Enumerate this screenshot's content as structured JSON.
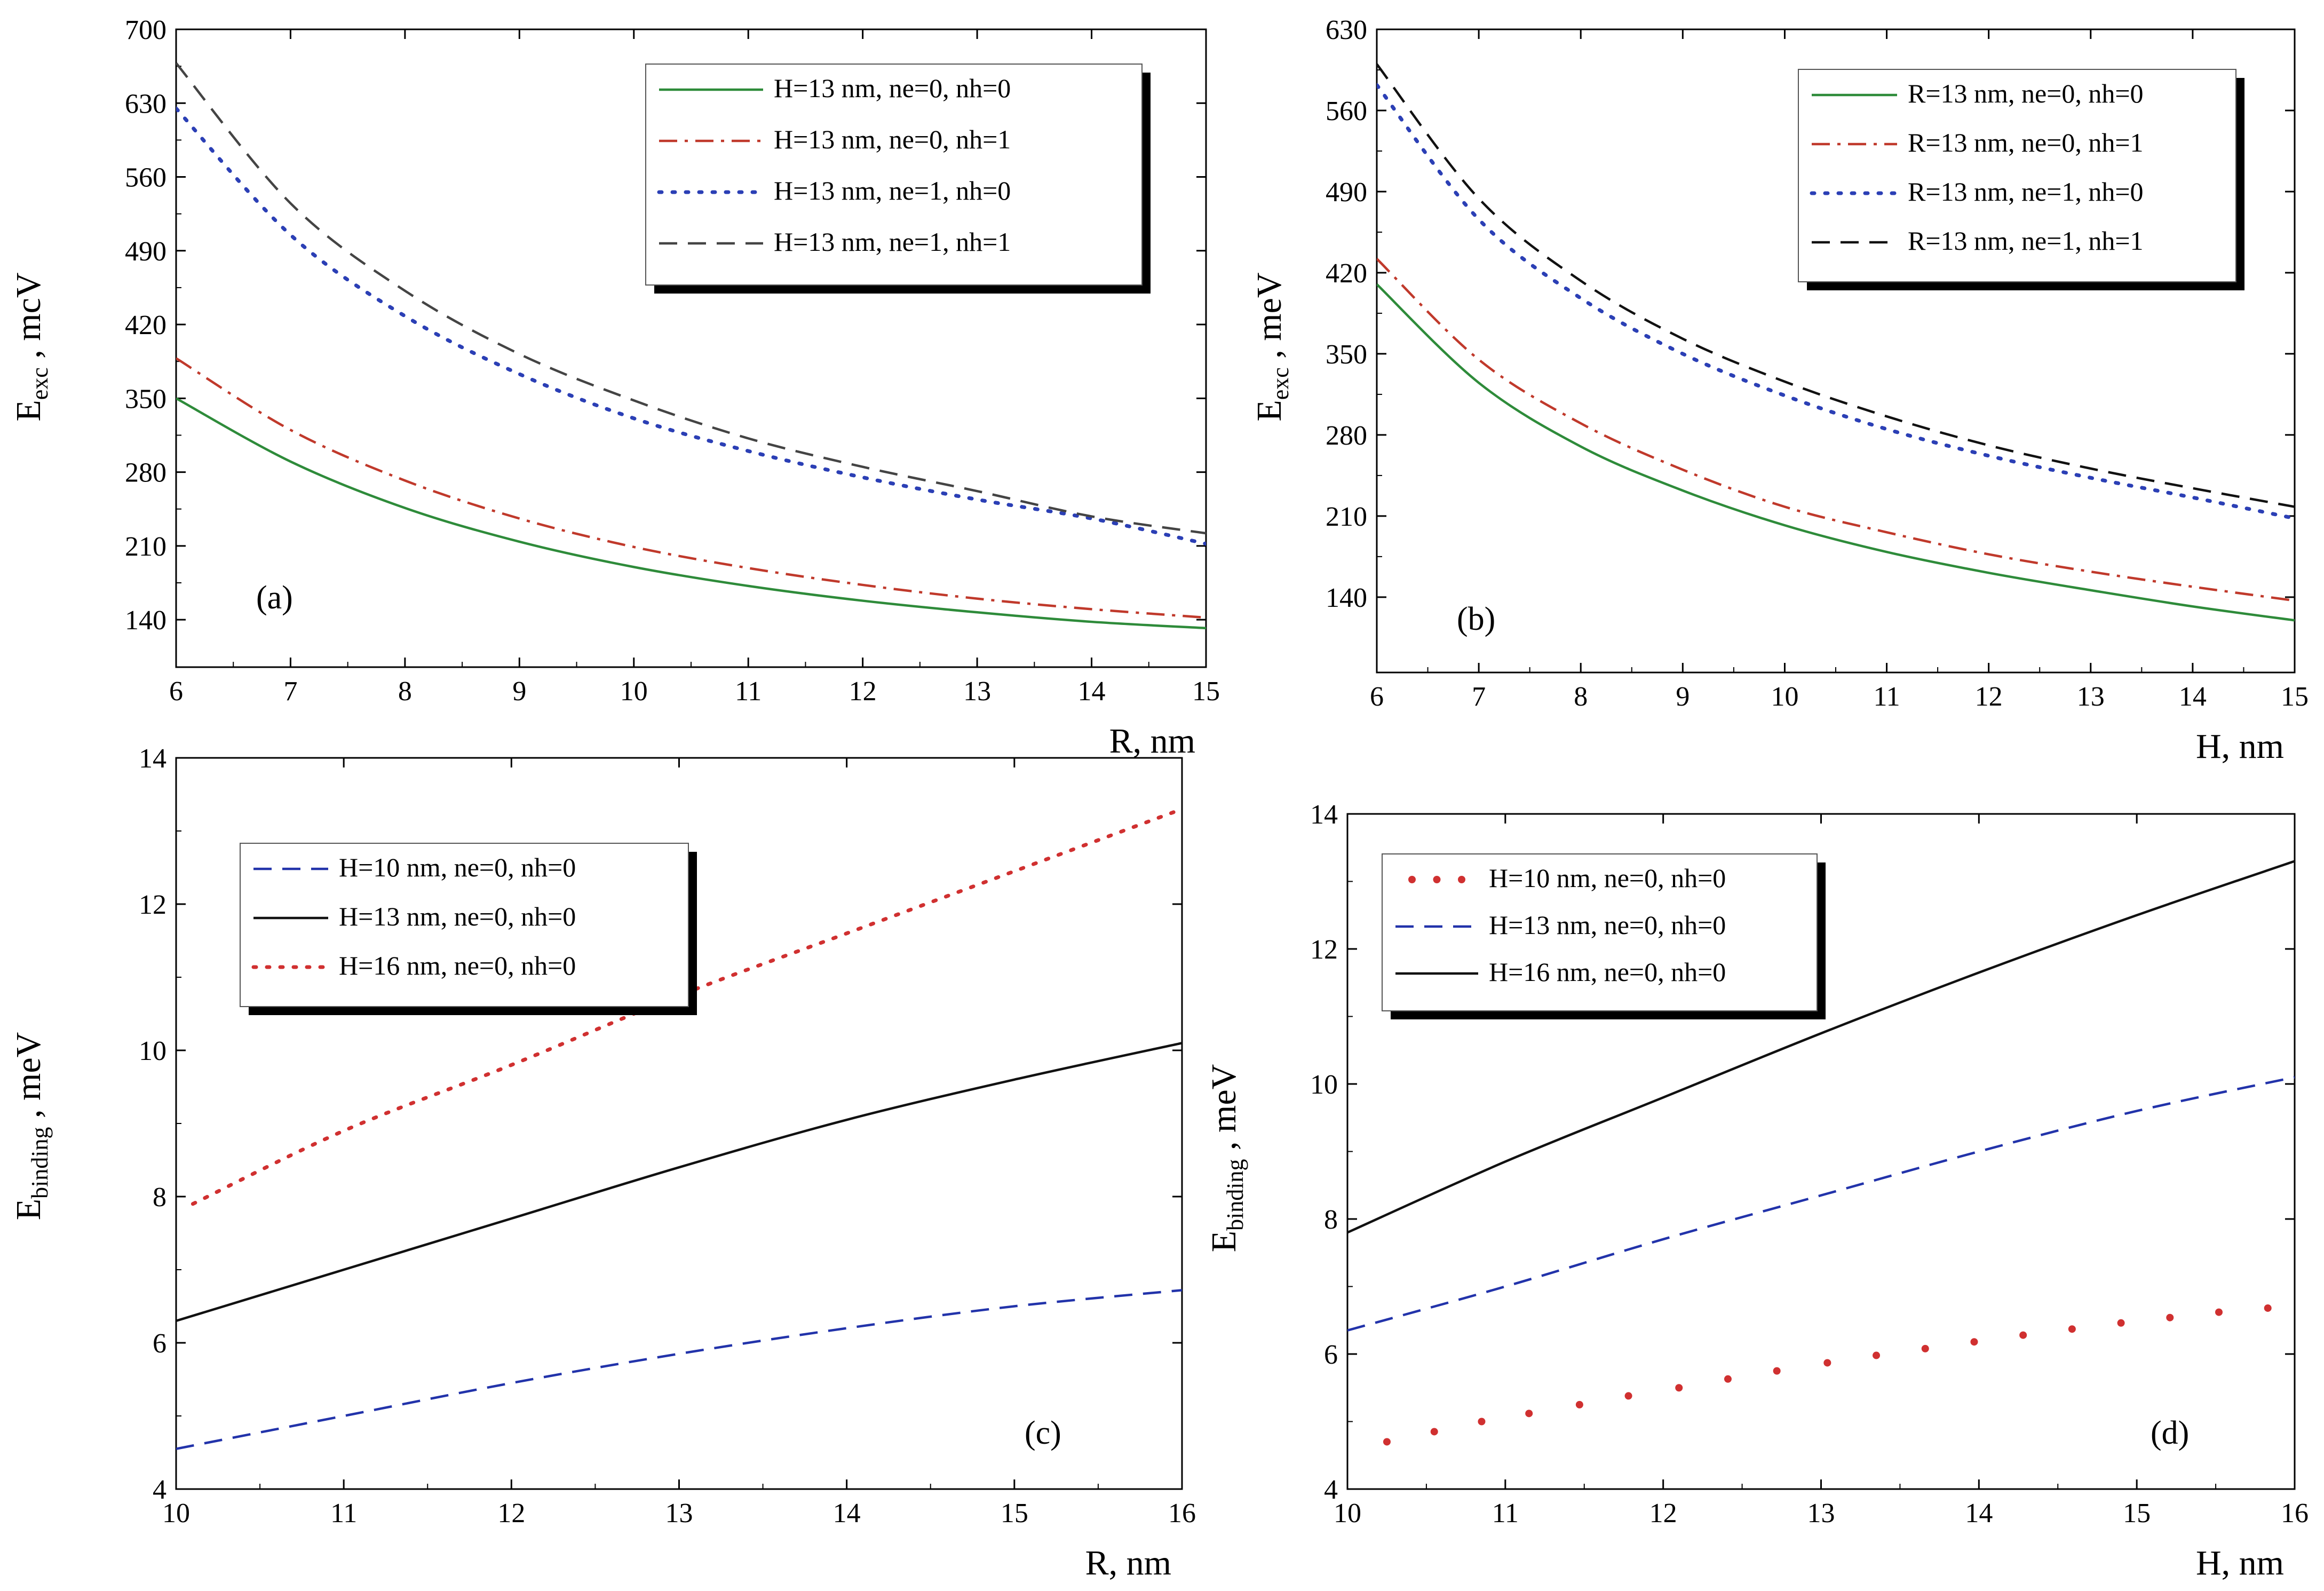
{
  "figure": {
    "panel_count": 4
  },
  "chart_data": [
    {
      "id": "a",
      "type": "line",
      "panel_label": "(a)",
      "xlabel": "R,  nm",
      "ylabel": {
        "main": "E",
        "sub": "exc",
        "unit": " , mcV"
      },
      "xlim": [
        6,
        15
      ],
      "ylim": [
        95,
        700
      ],
      "xticks": [
        6,
        7,
        8,
        9,
        10,
        11,
        12,
        13,
        14,
        15
      ],
      "yticks": [
        140,
        210,
        280,
        350,
        420,
        490,
        560,
        630,
        700
      ],
      "legend_position": "top-right",
      "series": [
        {
          "name": "H=13 nm, ne=0, nh=0",
          "color": "#2e8b3a",
          "style": "solid",
          "x": [
            6,
            7,
            8,
            9,
            10,
            11,
            12,
            13,
            14,
            15
          ],
          "y": [
            350,
            290,
            246,
            214,
            190,
            172,
            158,
            147,
            138,
            132
          ]
        },
        {
          "name": "H=13 nm, ne=0, nh=1",
          "color": "#c0392b",
          "style": "dashdot",
          "x": [
            6,
            7,
            8,
            9,
            10,
            11,
            12,
            13,
            14,
            15
          ],
          "y": [
            388,
            320,
            272,
            236,
            209,
            189,
            173,
            160,
            150,
            142
          ]
        },
        {
          "name": "H=13 nm, ne=1, nh=0",
          "color": "#2b3fb5",
          "style": "dotted",
          "x": [
            6,
            7,
            8,
            9,
            10,
            11,
            12,
            13,
            14,
            15
          ],
          "y": [
            625,
            505,
            428,
            373,
            331,
            300,
            275,
            254,
            236,
            212
          ]
        },
        {
          "name": "H=13 nm, ne=1, nh=1",
          "color": "#444444",
          "style": "dashed",
          "x": [
            6,
            7,
            8,
            9,
            10,
            11,
            12,
            13,
            14,
            15
          ],
          "y": [
            668,
            535,
            452,
            392,
            348,
            312,
            285,
            262,
            238,
            222
          ]
        }
      ]
    },
    {
      "id": "b",
      "type": "line",
      "panel_label": "(b)",
      "xlabel": "H, nm",
      "ylabel": {
        "main": "E",
        "sub": "exc",
        "unit": " , meV"
      },
      "xlim": [
        6,
        15
      ],
      "ylim": [
        75,
        630
      ],
      "xticks": [
        6,
        7,
        8,
        9,
        10,
        11,
        12,
        13,
        14,
        15
      ],
      "yticks": [
        140,
        210,
        280,
        350,
        420,
        490,
        560,
        630
      ],
      "legend_position": "top-right",
      "series": [
        {
          "name": "R=13 nm, ne=0, nh=0",
          "color": "#2e8b3a",
          "style": "solid",
          "x": [
            6,
            7,
            8,
            9,
            10,
            11,
            12,
            13,
            14,
            15
          ],
          "y": [
            410,
            325,
            270,
            232,
            202,
            179,
            161,
            146,
            132,
            120
          ]
        },
        {
          "name": "R=13 nm, ne=0, nh=1",
          "color": "#c0392b",
          "style": "dashdot",
          "x": [
            6,
            7,
            8,
            9,
            10,
            11,
            12,
            13,
            14,
            15
          ],
          "y": [
            432,
            345,
            290,
            250,
            218,
            196,
            177,
            162,
            149,
            137
          ]
        },
        {
          "name": "R=13 nm, ne=1, nh=0",
          "color": "#2b3fb5",
          "style": "dotted",
          "x": [
            6,
            7,
            8,
            9,
            10,
            11,
            12,
            13,
            14,
            15
          ],
          "y": [
            582,
            466,
            398,
            350,
            314,
            285,
            262,
            243,
            226,
            208
          ]
        },
        {
          "name": "R=13 nm, ne=1, nh=1",
          "color": "#111111",
          "style": "dashed",
          "x": [
            6,
            7,
            8,
            9,
            10,
            11,
            12,
            13,
            14,
            15
          ],
          "y": [
            600,
            484,
            413,
            363,
            326,
            296,
            271,
            251,
            234,
            218
          ]
        }
      ]
    },
    {
      "id": "c",
      "type": "line",
      "panel_label": "(c)",
      "xlabel": "R, nm",
      "ylabel": {
        "main": "E",
        "sub": "binding",
        "unit": " , meV"
      },
      "xlim": [
        10,
        16
      ],
      "ylim": [
        4,
        14
      ],
      "xticks": [
        10,
        11,
        12,
        13,
        14,
        15,
        16
      ],
      "xtick_labels": [
        "10",
        "11",
        "12",
        "13",
        "14",
        "15",
        "16"
      ],
      "yticks": [
        4,
        6,
        8,
        10,
        12,
        14
      ],
      "legend_position": "top-left",
      "series": [
        {
          "name": "H=10 nm, ne=0, nh=0",
          "color": "#2233aa",
          "style": "dashed",
          "x": [
            10,
            11,
            12,
            13,
            14,
            15,
            16
          ],
          "y": [
            4.55,
            5.0,
            5.45,
            5.85,
            6.2,
            6.5,
            6.72
          ]
        },
        {
          "name": "H=13 nm, ne=0, nh=0",
          "color": "#111111",
          "style": "solid",
          "x": [
            10,
            11,
            12,
            13,
            14,
            15,
            16
          ],
          "y": [
            6.3,
            7.0,
            7.7,
            8.4,
            9.05,
            9.6,
            10.1
          ]
        },
        {
          "name": "H=16 nm, ne=0, nh=0",
          "color": "#d03030",
          "style": "dotted",
          "x": [
            10.1,
            11,
            12,
            13,
            14,
            15,
            16
          ],
          "y": [
            7.9,
            8.9,
            9.8,
            10.75,
            11.6,
            12.45,
            13.3
          ]
        }
      ]
    },
    {
      "id": "d",
      "type": "line",
      "panel_label": "(d)",
      "xlabel": "H, nm",
      "ylabel": {
        "main": "E",
        "sub": "binding",
        "unit": " , meV"
      },
      "xlim": [
        10,
        16
      ],
      "ylim": [
        4,
        14
      ],
      "xticks": [
        10,
        11,
        12,
        13,
        14,
        15,
        16
      ],
      "xtick_labels": [
        "10",
        "11",
        "12",
        "13",
        "14",
        "15",
        "16"
      ],
      "yticks": [
        4,
        6,
        8,
        10,
        12,
        14
      ],
      "legend_position": "top-left",
      "series": [
        {
          "name": "H=10 nm, ne=0, nh=0",
          "color": "#d03030",
          "style": "dots",
          "x": [
            10.25,
            10.55,
            10.85,
            11.15,
            11.47,
            11.78,
            12.1,
            12.41,
            12.72,
            13.04,
            13.35,
            13.66,
            13.97,
            14.28,
            14.59,
            14.9,
            15.21,
            15.52,
            15.83
          ],
          "y": [
            4.7,
            4.85,
            5.0,
            5.12,
            5.25,
            5.38,
            5.5,
            5.63,
            5.75,
            5.87,
            5.98,
            6.08,
            6.18,
            6.28,
            6.37,
            6.46,
            6.54,
            6.62,
            6.68
          ]
        },
        {
          "name": "H=13 nm, ne=0, nh=0",
          "color": "#2233aa",
          "style": "dashed",
          "x": [
            10,
            11,
            12,
            13,
            14,
            15,
            16
          ],
          "y": [
            6.35,
            7.0,
            7.7,
            8.35,
            9.0,
            9.6,
            10.1
          ]
        },
        {
          "name": "H=16 nm, ne=0, nh=0",
          "color": "#111111",
          "style": "solid",
          "x": [
            10,
            11,
            12,
            13,
            14,
            15,
            16
          ],
          "y": [
            7.8,
            8.85,
            9.8,
            10.75,
            11.65,
            12.5,
            13.3
          ]
        }
      ]
    }
  ]
}
